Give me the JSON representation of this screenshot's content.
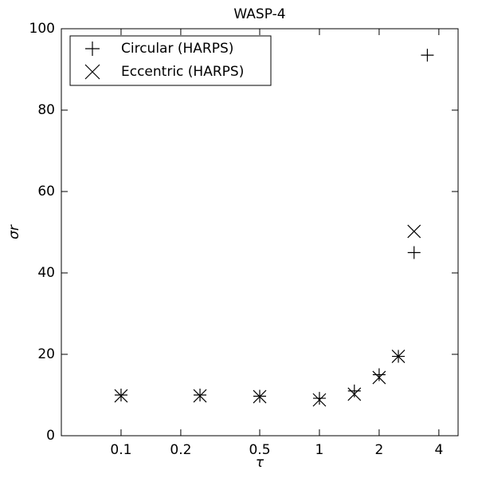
{
  "chart_data": {
    "type": "scatter",
    "title": "WASP-4",
    "xlabel": "τ",
    "ylabel": "σr",
    "xscale": "log",
    "xlim": [
      0.05,
      5
    ],
    "ylim": [
      0,
      100
    ],
    "xticks": [
      0.1,
      0.2,
      0.5,
      1,
      2,
      4
    ],
    "yticks": [
      0,
      20,
      40,
      60,
      80,
      100
    ],
    "legend": "upper left",
    "series": [
      {
        "name": "Circular (HARPS)",
        "marker": "plus",
        "color": "#000000",
        "x": [
          0.1,
          0.25,
          0.5,
          1,
          1.5,
          2,
          2.5,
          3,
          3.5
        ],
        "values": [
          10,
          10,
          9.7,
          9.2,
          11,
          15,
          19.5,
          45,
          93.5
        ]
      },
      {
        "name": "Eccentric (HARPS)",
        "marker": "x",
        "color": "#000000",
        "x": [
          0.1,
          0.25,
          0.5,
          1,
          1.5,
          2,
          2.5,
          3
        ],
        "values": [
          9.8,
          9.8,
          9.6,
          8.8,
          10.2,
          14.3,
          19.5,
          50.2
        ]
      }
    ]
  }
}
